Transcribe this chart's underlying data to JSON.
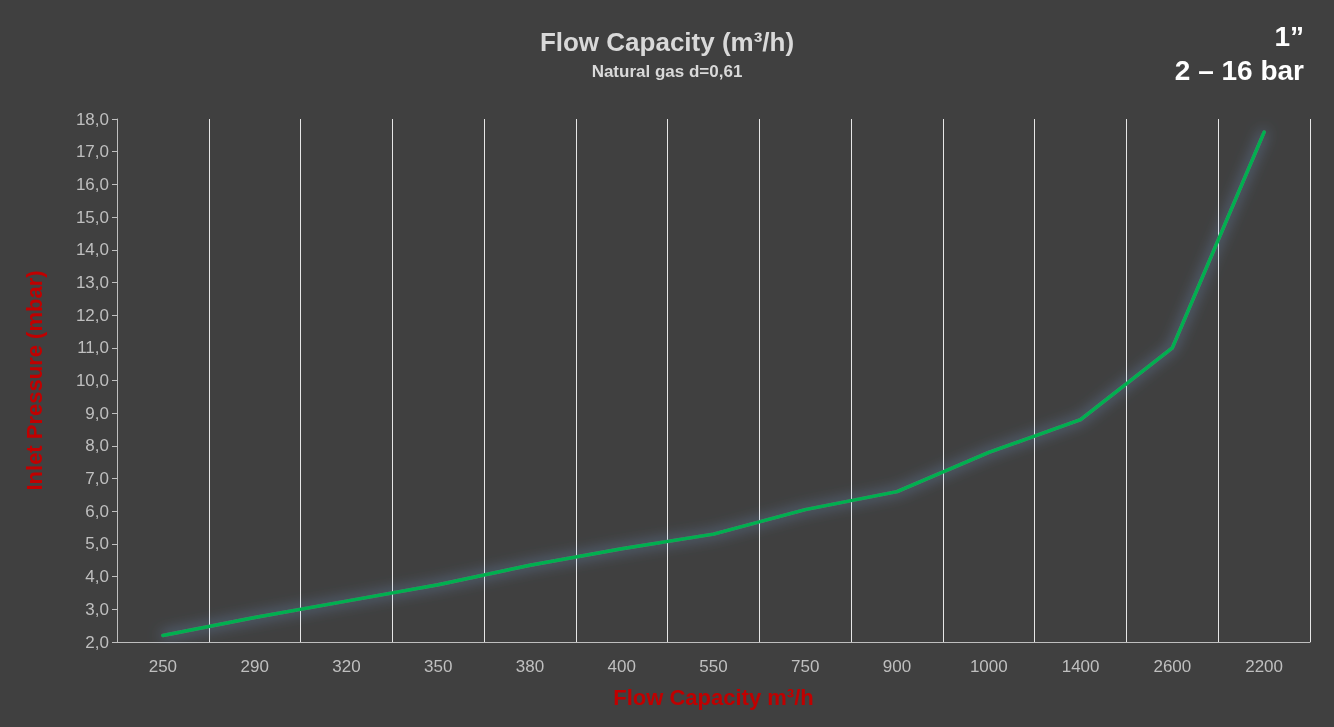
{
  "chart_data": {
    "type": "line",
    "title": "Flow Capacity (m³/h)",
    "subtitle": "Natural gas d=0,61",
    "xlabel": "Flow Capacity m³/h",
    "ylabel": "Inlet Pressure (mbar)",
    "annotations": [
      "1”",
      "2 – 16 bar"
    ],
    "categories": [
      "250",
      "290",
      "320",
      "350",
      "380",
      "400",
      "550",
      "750",
      "900",
      "1000",
      "1400",
      "2600",
      "2200"
    ],
    "series": [
      {
        "color": "#00b050",
        "values": [
          2.2,
          2.75,
          3.25,
          3.75,
          4.35,
          4.85,
          5.3,
          6.05,
          6.6,
          7.8,
          8.8,
          11.0,
          17.6
        ]
      }
    ],
    "ylim": [
      2,
      18
    ],
    "yticks": [
      {
        "value": 2,
        "label": "2,0"
      },
      {
        "value": 3,
        "label": "3,0"
      },
      {
        "value": 4,
        "label": "4,0"
      },
      {
        "value": 5,
        "label": "5,0"
      },
      {
        "value": 6,
        "label": "6,0"
      },
      {
        "value": 7,
        "label": "7,0"
      },
      {
        "value": 8,
        "label": "8,0"
      },
      {
        "value": 9,
        "label": "9,0"
      },
      {
        "value": 10,
        "label": "10,0"
      },
      {
        "value": 11,
        "label": "11,0"
      },
      {
        "value": 12,
        "label": "12,0"
      },
      {
        "value": 13,
        "label": "13,0"
      },
      {
        "value": 14,
        "label": "14,0"
      },
      {
        "value": 15,
        "label": "15,0"
      },
      {
        "value": 16,
        "label": "16,0"
      },
      {
        "value": 17,
        "label": "17,0"
      },
      {
        "value": 18,
        "label": "18,0"
      }
    ],
    "grid": "x",
    "marker": "none",
    "line_style": "solid"
  }
}
